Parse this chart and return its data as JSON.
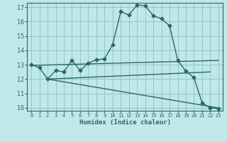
{
  "xlabel": "Humidex (Indice chaleur)",
  "bg_color": "#c0e8e8",
  "line_color": "#2a6868",
  "grid_color": "#90c0c0",
  "xlim": [
    -0.5,
    23.5
  ],
  "ylim": [
    9.8,
    17.3
  ],
  "yticks": [
    10,
    11,
    12,
    13,
    14,
    15,
    16,
    17
  ],
  "xticks": [
    0,
    1,
    2,
    3,
    4,
    5,
    6,
    7,
    8,
    9,
    10,
    11,
    12,
    13,
    14,
    15,
    16,
    17,
    18,
    19,
    20,
    21,
    22,
    23
  ],
  "line1_x": [
    0,
    1,
    2,
    3,
    4,
    5,
    6,
    7,
    8,
    9,
    10,
    11,
    12,
    13,
    14,
    15,
    16,
    17,
    18,
    19,
    20,
    21,
    22,
    23
  ],
  "line1_y": [
    13.0,
    12.8,
    12.0,
    12.6,
    12.5,
    13.3,
    12.6,
    13.1,
    13.35,
    13.4,
    14.4,
    16.7,
    16.45,
    17.15,
    17.1,
    16.4,
    16.2,
    15.7,
    13.3,
    12.55,
    12.1,
    10.35,
    10.0,
    9.95
  ],
  "trend1_x": [
    0,
    23
  ],
  "trend1_y": [
    12.95,
    13.3
  ],
  "trend2_x": [
    2,
    22
  ],
  "trend2_y": [
    12.0,
    12.5
  ],
  "trend3_x": [
    2,
    23
  ],
  "trend3_y": [
    12.0,
    10.0
  ],
  "marker": "D",
  "markersize": 2.5,
  "linewidth": 1.0
}
